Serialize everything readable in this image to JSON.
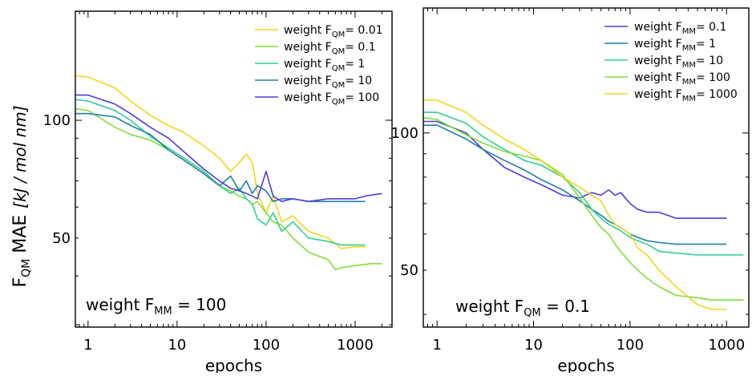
{
  "colors": {
    "yellow": "#f2d51c",
    "lime": "#7fdd3a",
    "green": "#2fd08f",
    "teal": "#1f7fa6",
    "blue": "#4a3fd6"
  },
  "shared": {
    "ylabel_main": "F",
    "ylabel_sub": "QM",
    "ylabel_rest": " MAE",
    "ylabel_unit": "[kJ / mol nm]"
  },
  "chart_data": [
    {
      "type": "line",
      "xlabel": "epochs",
      "xscale": "log",
      "yscale": "log",
      "xlim": [
        0.72,
        2600
      ],
      "ylim": [
        29.6,
        190
      ],
      "xticks": [
        "1",
        "10",
        "100",
        "1000"
      ],
      "yticks": [
        "50",
        "100"
      ],
      "legend_position": "top-right",
      "annotation": {
        "main": "weight F",
        "sub": "MM",
        "rest": " = 100"
      },
      "series": [
        {
          "name_main": "weight F",
          "name_sub": "QM",
          "name_rest": "= 0.01",
          "color": "yellow",
          "x": [
            0.72,
            1,
            2,
            3,
            5,
            8,
            12,
            20,
            30,
            40,
            50,
            60,
            70,
            80,
            100,
            120,
            150,
            200,
            300,
            500,
            700,
            1000,
            1300
          ],
          "y": [
            130,
            129,
            121,
            112,
            103,
            97,
            93,
            86,
            80,
            74,
            78,
            82,
            78,
            65,
            58,
            64,
            55,
            57,
            52,
            50,
            47,
            47.5,
            47.5
          ]
        },
        {
          "name_main": "weight F",
          "name_sub": "QM",
          "name_rest": "= 0.1",
          "color": "lime",
          "x": [
            0.72,
            1,
            2,
            3,
            5,
            8,
            12,
            20,
            30,
            40,
            50,
            60,
            70,
            80,
            100,
            120,
            150,
            200,
            300,
            500,
            600,
            700,
            1000,
            1500,
            2000
          ],
          "y": [
            107,
            106,
            96,
            92,
            89,
            84,
            79,
            73,
            68,
            66,
            64,
            63,
            61,
            62,
            58,
            55,
            54,
            50,
            46,
            44,
            41.5,
            42,
            42.5,
            43,
            43
          ]
        },
        {
          "name_main": "weight F",
          "name_sub": "QM",
          "name_rest": "= 1",
          "color": "green",
          "x": [
            0.72,
            1,
            2,
            3,
            5,
            8,
            12,
            20,
            30,
            40,
            50,
            60,
            70,
            80,
            100,
            120,
            150,
            200,
            300,
            500,
            700,
            1000,
            1300
          ],
          "y": [
            113,
            112,
            106,
            100,
            91,
            85,
            80,
            74,
            68,
            65,
            67,
            63,
            61,
            56,
            54,
            58,
            52,
            55,
            50,
            49,
            48,
            48,
            48
          ]
        },
        {
          "name_main": "weight F",
          "name_sub": "QM",
          "name_rest": "= 10",
          "color": "teal",
          "x": [
            0.72,
            1,
            2,
            3,
            5,
            8,
            12,
            20,
            30,
            40,
            50,
            60,
            70,
            80,
            100,
            120,
            150,
            200,
            300,
            500,
            700,
            1000,
            1300
          ],
          "y": [
            104,
            104,
            102,
            97,
            92,
            84,
            79,
            73,
            68,
            72,
            66,
            70,
            65,
            68,
            66,
            62,
            63,
            63,
            62,
            62,
            62,
            62,
            62
          ]
        },
        {
          "name_main": "weight F",
          "name_sub": "QM",
          "name_rest": "= 100",
          "color": "blue",
          "x": [
            0.72,
            1,
            2,
            3,
            5,
            8,
            12,
            20,
            30,
            40,
            50,
            60,
            70,
            80,
            100,
            120,
            150,
            200,
            300,
            500,
            700,
            1000,
            1300,
            2000
          ],
          "y": [
            116,
            116,
            110,
            104,
            96,
            90,
            83,
            75,
            70,
            67,
            66,
            65,
            64,
            63,
            74,
            64,
            62,
            63,
            62,
            63,
            63,
            63,
            64,
            65
          ]
        }
      ]
    },
    {
      "type": "line",
      "xlabel": "epochs",
      "xscale": "log",
      "yscale": "log",
      "xlim": [
        0.72,
        1700
      ],
      "ylim": [
        37.5,
        188
      ],
      "xticks": [
        "1",
        "10",
        "100",
        "1000"
      ],
      "yticks": [
        "50",
        "100"
      ],
      "legend_position": "top-right",
      "annotation": {
        "main": "weight F",
        "sub": "QM",
        "rest": " = 0.1"
      },
      "series": [
        {
          "name_main": "weight F",
          "name_sub": "MM",
          "name_rest": "= 0.1",
          "color": "blue",
          "x": [
            0.72,
            1,
            2,
            3,
            5,
            8,
            12,
            20,
            30,
            40,
            50,
            60,
            70,
            80,
            100,
            120,
            150,
            200,
            300,
            500,
            700,
            1000
          ],
          "y": [
            106,
            106,
            100,
            92,
            84,
            80,
            77,
            73,
            72,
            74,
            73,
            75,
            73,
            74,
            70,
            68,
            67,
            67,
            65,
            65,
            65,
            65
          ]
        },
        {
          "name_main": "weight F",
          "name_sub": "MM",
          "name_rest": "= 1",
          "color": "teal",
          "x": [
            0.72,
            1,
            2,
            3,
            5,
            8,
            12,
            20,
            30,
            40,
            50,
            60,
            70,
            80,
            100,
            120,
            150,
            200,
            300,
            500,
            700,
            1000
          ],
          "y": [
            104,
            104,
            97,
            92,
            87,
            83,
            79,
            75,
            71,
            68,
            66,
            64,
            63,
            62,
            60,
            59,
            58,
            57.5,
            57,
            57,
            57,
            57
          ]
        },
        {
          "name_main": "weight F",
          "name_sub": "MM",
          "name_rest": "= 10",
          "color": "green",
          "x": [
            0.72,
            1,
            2,
            3,
            5,
            8,
            12,
            20,
            30,
            40,
            50,
            60,
            70,
            80,
            100,
            120,
            150,
            200,
            300,
            500,
            700,
            1000,
            1500
          ],
          "y": [
            111,
            111,
            105,
            98,
            92,
            87,
            85,
            80,
            74,
            68,
            65,
            63,
            62,
            61,
            59,
            58,
            57,
            55,
            54.5,
            54,
            54,
            54,
            54
          ]
        },
        {
          "name_main": "weight F",
          "name_sub": "MM",
          "name_rest": "= 100",
          "color": "lime",
          "x": [
            0.72,
            1,
            2,
            3,
            5,
            8,
            12,
            20,
            30,
            40,
            50,
            60,
            70,
            80,
            100,
            120,
            150,
            200,
            300,
            500,
            700,
            1000,
            1500
          ],
          "y": [
            108,
            107,
            99,
            95,
            91,
            89,
            87,
            81,
            72,
            66,
            62,
            60,
            57,
            55,
            52,
            50,
            48,
            46,
            44,
            43.5,
            43,
            43,
            43
          ]
        },
        {
          "name_main": "weight F",
          "name_sub": "MM",
          "name_rest": "= 1000",
          "color": "yellow",
          "x": [
            0.72,
            1,
            2,
            3,
            5,
            8,
            12,
            20,
            30,
            40,
            50,
            60,
            70,
            80,
            100,
            120,
            150,
            200,
            300,
            500,
            700,
            1000
          ],
          "y": [
            118,
            118,
            111,
            104,
            97,
            92,
            87,
            80,
            76,
            73,
            71,
            66,
            63,
            62,
            60,
            56,
            54,
            50,
            46,
            42,
            41,
            41
          ]
        }
      ]
    }
  ]
}
